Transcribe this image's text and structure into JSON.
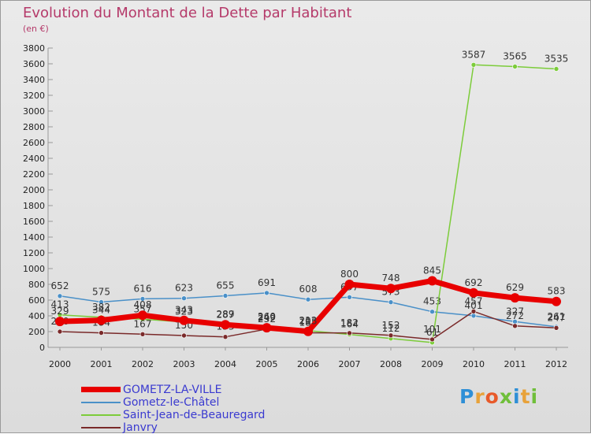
{
  "title": "Evolution du Montant de la Dette par Habitant",
  "subtitle": "(en €)",
  "logo": {
    "text": "Proxiti",
    "colors": [
      "#2e8fd6",
      "#e8a23a",
      "#e85a2a",
      "#6fbf3a",
      "#2e8fd6",
      "#e8a23a",
      "#6fbf3a"
    ]
  },
  "chart_data": {
    "type": "line",
    "x": [
      "2000",
      "2001",
      "2002",
      "2003",
      "2004",
      "2005",
      "2006",
      "2007",
      "2008",
      "2009",
      "2010",
      "2011",
      "2012"
    ],
    "ylim": [
      0,
      3800
    ],
    "yticks": [
      0,
      200,
      400,
      600,
      800,
      1000,
      1200,
      1400,
      1600,
      1800,
      2000,
      2200,
      2400,
      2600,
      2800,
      3000,
      3200,
      3400,
      3600,
      3800
    ],
    "grid": false,
    "legend": "bottom-left",
    "series": [
      {
        "name": "Gometz-le-Châtel",
        "color": "#4a90c8",
        "lw": 1.5,
        "r": 3,
        "values": [
          652,
          575,
          616,
          623,
          655,
          691,
          608,
          637,
          573,
          453,
          401,
          327,
          261
        ],
        "labels": [
          "652",
          "575",
          "616",
          "623",
          "655",
          "691",
          "608",
          "637",
          "573",
          "453",
          "401",
          "327",
          "261"
        ]
      },
      {
        "name": "Saint-Jean-de-Beauregard",
        "color": "#7ccc3a",
        "lw": 1.5,
        "r": 3,
        "values": [
          413,
          382,
          357,
          323,
          289,
          260,
          212,
          164,
          112,
          61,
          3587,
          3565,
          3535
        ],
        "labels": [
          "413",
          "382",
          "357",
          "323",
          "289",
          "260",
          "212",
          "164",
          "112",
          "61",
          "3587",
          "3565",
          "3535"
        ]
      },
      {
        "name": "Janvry",
        "color": "#7a2a2a",
        "lw": 1.5,
        "r": 3,
        "values": [
          200,
          184,
          167,
          150,
          133,
          232,
          185,
          182,
          152,
          101,
          457,
          272,
          247
        ],
        "labels": [
          "200",
          "184",
          "167",
          "150",
          "133",
          "232",
          "185",
          "182",
          "152",
          "101",
          "457",
          "272",
          "247"
        ]
      },
      {
        "name": "GOMETZ-LA-VILLE",
        "color": "#e80000",
        "lw": 7,
        "r": 6,
        "values": [
          329,
          344,
          408,
          343,
          287,
          249,
          203,
          800,
          748,
          845,
          692,
          629,
          583
        ],
        "labels": [
          "329",
          "344",
          "408",
          "343",
          "287",
          "249",
          "203",
          "800",
          "748",
          "845",
          "692",
          "629",
          "583"
        ]
      }
    ]
  },
  "legend_order": [
    "GOMETZ-LA-VILLE",
    "Gometz-le-Châtel",
    "Saint-Jean-de-Beauregard",
    "Janvry"
  ]
}
